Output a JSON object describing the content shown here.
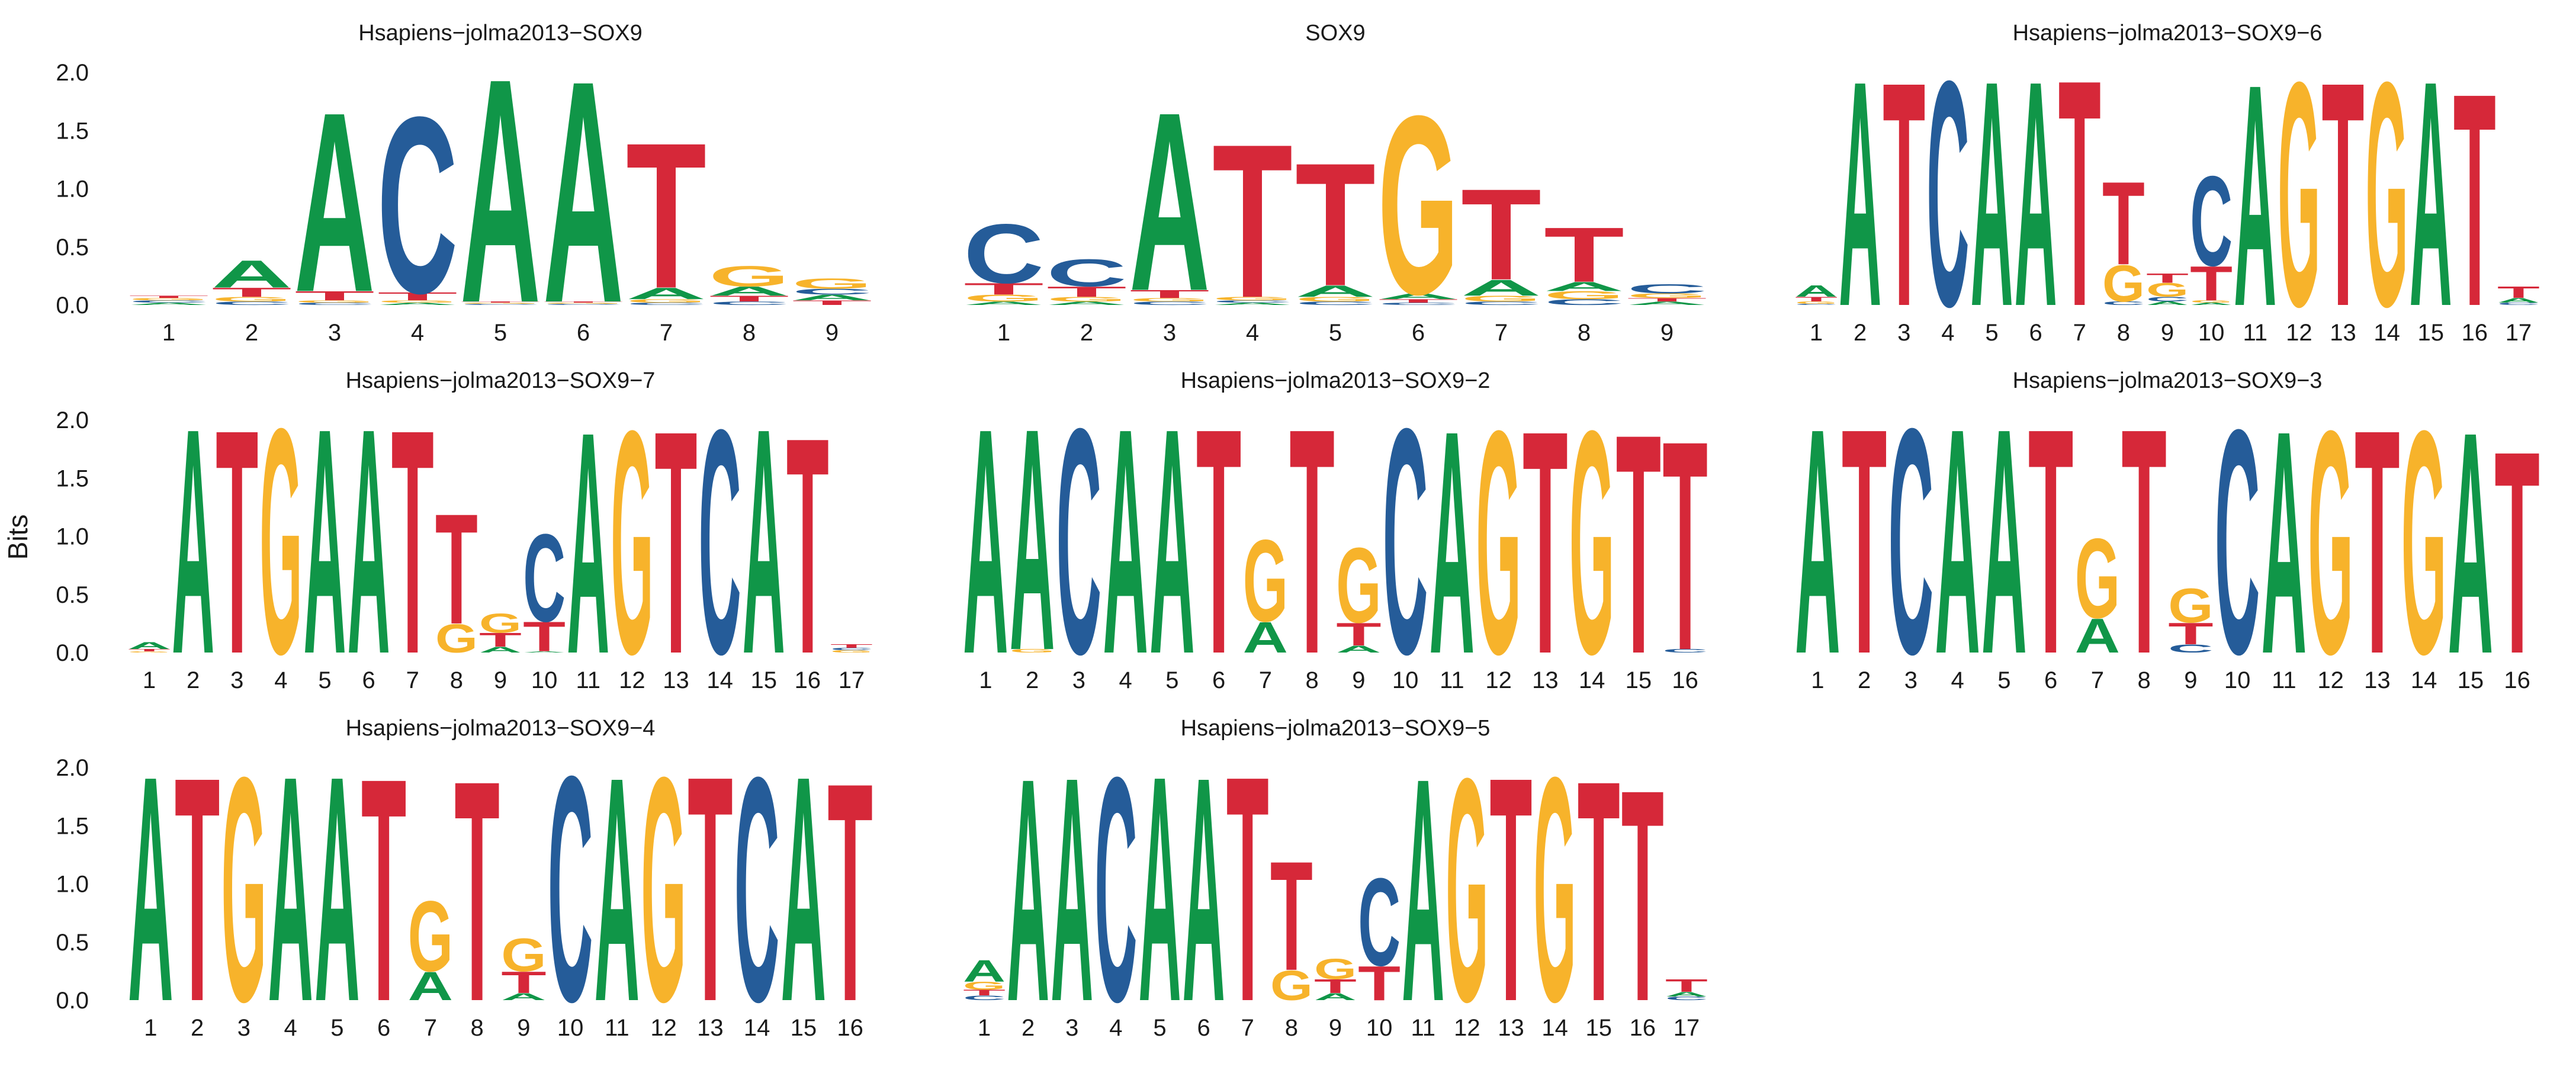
{
  "ylabel": "Bits",
  "colors": {
    "A": "#109648",
    "C": "#255C99",
    "G": "#F7B32B",
    "T": "#D62839"
  },
  "ylim": [
    0,
    2.0
  ],
  "yticks": [
    "0.0",
    "0.5",
    "1.0",
    "1.5",
    "2.0"
  ],
  "chart_data": [
    {
      "type": "sequence-logo",
      "title": "Hsapiens−jolma2013−SOX9",
      "positions": [
        "1",
        "2",
        "3",
        "4",
        "5",
        "6",
        "7",
        "8",
        "9"
      ],
      "columns": [
        [
          [
            "A",
            0.02
          ],
          [
            "C",
            0.02
          ],
          [
            "G",
            0.02
          ],
          [
            "T",
            0.02
          ]
        ],
        [
          [
            "C",
            0.03
          ],
          [
            "G",
            0.04
          ],
          [
            "T",
            0.08
          ],
          [
            "A",
            0.24
          ]
        ],
        [
          [
            "C",
            0.02
          ],
          [
            "G",
            0.02
          ],
          [
            "T",
            0.08
          ],
          [
            "A",
            1.58
          ]
        ],
        [
          [
            "A",
            0.02
          ],
          [
            "G",
            0.02
          ],
          [
            "T",
            0.07
          ],
          [
            "C",
            1.55
          ]
        ],
        [
          [
            "C",
            0.01
          ],
          [
            "G",
            0.01
          ],
          [
            "T",
            0.01
          ],
          [
            "A",
            1.97
          ]
        ],
        [
          [
            "C",
            0.01
          ],
          [
            "G",
            0.01
          ],
          [
            "T",
            0.01
          ],
          [
            "A",
            1.95
          ]
        ],
        [
          [
            "C",
            0.02
          ],
          [
            "G",
            0.03
          ],
          [
            "A",
            0.1
          ],
          [
            "T",
            1.28
          ]
        ],
        [
          [
            "C",
            0.03
          ],
          [
            "T",
            0.05
          ],
          [
            "A",
            0.08
          ],
          [
            "G",
            0.18
          ]
        ],
        [
          [
            "T",
            0.04
          ],
          [
            "A",
            0.05
          ],
          [
            "C",
            0.05
          ],
          [
            "G",
            0.09
          ]
        ]
      ]
    },
    {
      "type": "sequence-logo",
      "title": "SOX9",
      "positions": [
        "1",
        "2",
        "3",
        "4",
        "5",
        "6",
        "7",
        "8",
        "9"
      ],
      "columns": [
        [
          [
            "A",
            0.03
          ],
          [
            "G",
            0.06
          ],
          [
            "T",
            0.1
          ],
          [
            "C",
            0.52
          ]
        ],
        [
          [
            "A",
            0.03
          ],
          [
            "G",
            0.04
          ],
          [
            "T",
            0.09
          ],
          [
            "C",
            0.24
          ]
        ],
        [
          [
            "C",
            0.03
          ],
          [
            "G",
            0.03
          ],
          [
            "T",
            0.07
          ],
          [
            "A",
            1.57
          ]
        ],
        [
          [
            "A",
            0.02
          ],
          [
            "C",
            0.02
          ],
          [
            "G",
            0.03
          ],
          [
            "T",
            1.35
          ]
        ],
        [
          [
            "C",
            0.03
          ],
          [
            "G",
            0.04
          ],
          [
            "A",
            0.1
          ],
          [
            "T",
            1.08
          ]
        ],
        [
          [
            "C",
            0.02
          ],
          [
            "T",
            0.03
          ],
          [
            "A",
            0.05
          ],
          [
            "G",
            1.57
          ]
        ],
        [
          [
            "C",
            0.03
          ],
          [
            "G",
            0.05
          ],
          [
            "A",
            0.14
          ],
          [
            "T",
            0.8
          ]
        ],
        [
          [
            "C",
            0.05
          ],
          [
            "G",
            0.07
          ],
          [
            "A",
            0.08
          ],
          [
            "T",
            0.48
          ]
        ],
        [
          [
            "A",
            0.03
          ],
          [
            "T",
            0.03
          ],
          [
            "G",
            0.04
          ],
          [
            "C",
            0.08
          ]
        ]
      ]
    },
    {
      "type": "sequence-logo",
      "title": "Hsapiens−jolma2013−SOX9−6",
      "positions": [
        "1",
        "2",
        "3",
        "4",
        "5",
        "6",
        "7",
        "8",
        "9",
        "10",
        "11",
        "12",
        "13",
        "14",
        "15",
        "16",
        "17"
      ],
      "columns": [
        [
          [
            "C",
            0.01
          ],
          [
            "G",
            0.02
          ],
          [
            "T",
            0.04
          ],
          [
            "A",
            0.1
          ]
        ],
        [
          [
            "A",
            1.98
          ]
        ],
        [
          [
            "T",
            1.97
          ]
        ],
        [
          [
            "C",
            1.98
          ]
        ],
        [
          [
            "A",
            1.98
          ]
        ],
        [
          [
            "A",
            1.98
          ]
        ],
        [
          [
            "T",
            1.99
          ]
        ],
        [
          [
            "C",
            0.03
          ],
          [
            "G",
            0.32
          ],
          [
            "T",
            0.73
          ]
        ],
        [
          [
            "A",
            0.03
          ],
          [
            "C",
            0.04
          ],
          [
            "G",
            0.12
          ],
          [
            "T",
            0.08
          ]
        ],
        [
          [
            "A",
            0.02
          ],
          [
            "G",
            0.02
          ],
          [
            "T",
            0.3
          ],
          [
            "C",
            0.79
          ]
        ],
        [
          [
            "A",
            1.95
          ]
        ],
        [
          [
            "G",
            1.97
          ]
        ],
        [
          [
            "T",
            1.97
          ]
        ],
        [
          [
            "G",
            1.97
          ]
        ],
        [
          [
            "A",
            1.98
          ]
        ],
        [
          [
            "T",
            1.87
          ]
        ],
        [
          [
            "C",
            0.02
          ],
          [
            "A",
            0.04
          ],
          [
            "T",
            0.1
          ]
        ]
      ]
    },
    {
      "type": "sequence-logo",
      "title": "Hsapiens−jolma2013−SOX9−7",
      "positions": [
        "1",
        "2",
        "3",
        "4",
        "5",
        "6",
        "7",
        "8",
        "9",
        "10",
        "11",
        "12",
        "13",
        "14",
        "15",
        "16",
        "17"
      ],
      "columns": [
        [
          [
            "G",
            0.01
          ],
          [
            "T",
            0.02
          ],
          [
            "A",
            0.06
          ]
        ],
        [
          [
            "A",
            1.98
          ]
        ],
        [
          [
            "T",
            1.97
          ]
        ],
        [
          [
            "G",
            1.98
          ]
        ],
        [
          [
            "A",
            1.98
          ]
        ],
        [
          [
            "A",
            1.98
          ]
        ],
        [
          [
            "T",
            1.97
          ]
        ],
        [
          [
            "G",
            0.25
          ],
          [
            "T",
            0.97
          ]
        ],
        [
          [
            "A",
            0.05
          ],
          [
            "T",
            0.12
          ],
          [
            "G",
            0.17
          ]
        ],
        [
          [
            "A",
            0.01
          ],
          [
            "T",
            0.26
          ],
          [
            "C",
            0.77
          ]
        ],
        [
          [
            "A",
            1.95
          ]
        ],
        [
          [
            "G",
            1.96
          ]
        ],
        [
          [
            "T",
            1.96
          ]
        ],
        [
          [
            "C",
            1.97
          ]
        ],
        [
          [
            "A",
            1.98
          ]
        ],
        [
          [
            "T",
            1.9
          ]
        ],
        [
          [
            "G",
            0.02
          ],
          [
            "C",
            0.02
          ],
          [
            "T",
            0.03
          ]
        ]
      ]
    },
    {
      "type": "sequence-logo",
      "title": "Hsapiens−jolma2013−SOX9−2",
      "positions": [
        "1",
        "2",
        "3",
        "4",
        "5",
        "6",
        "7",
        "8",
        "9",
        "10",
        "11",
        "12",
        "13",
        "14",
        "15",
        "16"
      ],
      "columns": [
        [
          [
            "A",
            1.98
          ]
        ],
        [
          [
            "G",
            0.03
          ],
          [
            "A",
            1.95
          ]
        ],
        [
          [
            "C",
            1.98
          ]
        ],
        [
          [
            "A",
            1.98
          ]
        ],
        [
          [
            "A",
            1.98
          ]
        ],
        [
          [
            "T",
            1.98
          ]
        ],
        [
          [
            "A",
            0.27
          ],
          [
            "G",
            0.72
          ]
        ],
        [
          [
            "T",
            1.98
          ]
        ],
        [
          [
            "A",
            0.06
          ],
          [
            "T",
            0.2
          ],
          [
            "G",
            0.66
          ]
        ],
        [
          [
            "C",
            1.98
          ]
        ],
        [
          [
            "A",
            1.96
          ]
        ],
        [
          [
            "G",
            1.96
          ]
        ],
        [
          [
            "T",
            1.96
          ]
        ],
        [
          [
            "G",
            1.96
          ]
        ],
        [
          [
            "T",
            1.93
          ]
        ],
        [
          [
            "C",
            0.03
          ],
          [
            "T",
            1.84
          ]
        ]
      ]
    },
    {
      "type": "sequence-logo",
      "title": "Hsapiens−jolma2013−SOX9−3",
      "positions": [
        "1",
        "2",
        "3",
        "4",
        "5",
        "6",
        "7",
        "8",
        "9",
        "10",
        "11",
        "12",
        "13",
        "14",
        "15",
        "16"
      ],
      "columns": [
        [
          [
            "A",
            1.98
          ]
        ],
        [
          [
            "T",
            1.98
          ]
        ],
        [
          [
            "C",
            1.98
          ]
        ],
        [
          [
            "A",
            1.98
          ]
        ],
        [
          [
            "A",
            1.98
          ]
        ],
        [
          [
            "T",
            1.98
          ]
        ],
        [
          [
            "A",
            0.3
          ],
          [
            "G",
            0.7
          ]
        ],
        [
          [
            "T",
            1.98
          ]
        ],
        [
          [
            "C",
            0.07
          ],
          [
            "T",
            0.19
          ],
          [
            "G",
            0.3
          ]
        ],
        [
          [
            "C",
            1.97
          ]
        ],
        [
          [
            "A",
            1.96
          ]
        ],
        [
          [
            "G",
            1.96
          ]
        ],
        [
          [
            "T",
            1.97
          ]
        ],
        [
          [
            "G",
            1.96
          ]
        ],
        [
          [
            "A",
            1.95
          ]
        ],
        [
          [
            "T",
            1.78
          ]
        ]
      ]
    },
    {
      "type": "sequence-logo",
      "title": "Hsapiens−jolma2013−SOX9−4",
      "positions": [
        "1",
        "2",
        "3",
        "4",
        "5",
        "6",
        "7",
        "8",
        "9",
        "10",
        "11",
        "12",
        "13",
        "14",
        "15",
        "16"
      ],
      "columns": [
        [
          [
            "A",
            1.98
          ]
        ],
        [
          [
            "T",
            1.97
          ]
        ],
        [
          [
            "G",
            1.97
          ]
        ],
        [
          [
            "A",
            1.98
          ]
        ],
        [
          [
            "A",
            1.98
          ]
        ],
        [
          [
            "T",
            1.96
          ]
        ],
        [
          [
            "A",
            0.25
          ],
          [
            "G",
            0.62
          ]
        ],
        [
          [
            "T",
            1.94
          ]
        ],
        [
          [
            "A",
            0.06
          ],
          [
            "T",
            0.19
          ],
          [
            "G",
            0.29
          ]
        ],
        [
          [
            "C",
            1.98
          ]
        ],
        [
          [
            "A",
            1.97
          ]
        ],
        [
          [
            "G",
            1.97
          ]
        ],
        [
          [
            "T",
            1.98
          ]
        ],
        [
          [
            "C",
            1.97
          ]
        ],
        [
          [
            "A",
            1.98
          ]
        ],
        [
          [
            "T",
            1.92
          ]
        ]
      ]
    },
    {
      "type": "sequence-logo",
      "title": "Hsapiens−jolma2013−SOX9−5",
      "positions": [
        "1",
        "2",
        "3",
        "4",
        "5",
        "6",
        "7",
        "8",
        "9",
        "10",
        "11",
        "12",
        "13",
        "14",
        "15",
        "16",
        "17"
      ],
      "columns": [
        [
          [
            "C",
            0.04
          ],
          [
            "T",
            0.05
          ],
          [
            "G",
            0.07
          ],
          [
            "A",
            0.19
          ]
        ],
        [
          [
            "A",
            1.96
          ]
        ],
        [
          [
            "A",
            1.97
          ]
        ],
        [
          [
            "C",
            1.97
          ]
        ],
        [
          [
            "A",
            1.98
          ]
        ],
        [
          [
            "A",
            1.97
          ]
        ],
        [
          [
            "T",
            1.98
          ]
        ],
        [
          [
            "G",
            0.26
          ],
          [
            "T",
            0.96
          ]
        ],
        [
          [
            "A",
            0.06
          ],
          [
            "T",
            0.12
          ],
          [
            "G",
            0.18
          ]
        ],
        [
          [
            "T",
            0.3
          ],
          [
            "C",
            0.77
          ]
        ],
        [
          [
            "A",
            1.96
          ]
        ],
        [
          [
            "G",
            1.96
          ]
        ],
        [
          [
            "T",
            1.97
          ]
        ],
        [
          [
            "G",
            1.97
          ]
        ],
        [
          [
            "T",
            1.94
          ]
        ],
        [
          [
            "T",
            1.86
          ]
        ],
        [
          [
            "C",
            0.03
          ],
          [
            "A",
            0.04
          ],
          [
            "T",
            0.11
          ]
        ]
      ]
    }
  ]
}
